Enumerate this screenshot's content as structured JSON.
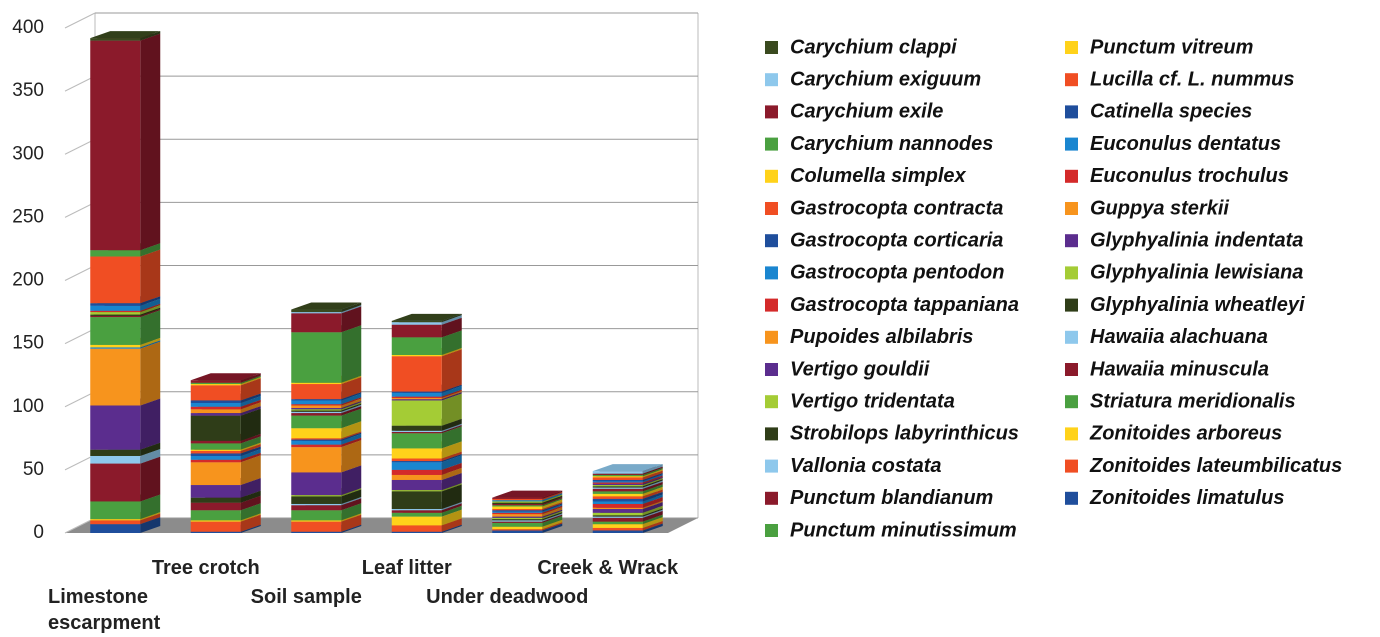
{
  "chart_data": {
    "type": "bar3d_stacked",
    "categories": [
      "Limestone escarpment",
      "Tree crotch",
      "Soil sample",
      "Leaf litter",
      "Under deadwood",
      "Creek & Wrack"
    ],
    "ylim": [
      0,
      400
    ],
    "yticks": [
      0,
      50,
      100,
      150,
      200,
      250,
      300,
      350,
      400
    ],
    "grid": true,
    "series": [
      {
        "name": "Carychium clappi",
        "color": "#3a4a1f",
        "values": [
          2,
          0,
          2,
          1,
          0,
          0
        ]
      },
      {
        "name": "Carychium exiguum",
        "color": "#8ec8ec",
        "values": [
          0,
          0,
          1,
          2,
          0,
          2
        ]
      },
      {
        "name": "Carychium exile",
        "color": "#8b1a2b",
        "values": [
          166,
          2,
          15,
          10,
          1,
          1
        ]
      },
      {
        "name": "Carychium nannodes",
        "color": "#4aa040",
        "values": [
          5,
          1,
          40,
          14,
          0,
          1
        ]
      },
      {
        "name": "Columella simplex",
        "color": "#ffd21a",
        "values": [
          0,
          1,
          1,
          1,
          0,
          1
        ]
      },
      {
        "name": "Gastrocopta contracta",
        "color": "#f04e23",
        "values": [
          37,
          12,
          12,
          28,
          1,
          2
        ]
      },
      {
        "name": "Gastrocopta corticaria",
        "color": "#1f4e9c",
        "values": [
          2,
          2,
          1,
          1,
          0,
          1
        ]
      },
      {
        "name": "Gastrocopta pentodon",
        "color": "#1a86d0",
        "values": [
          4,
          3,
          3,
          3,
          1,
          1
        ]
      },
      {
        "name": "Gastrocopta tappaniana",
        "color": "#d42a2a",
        "values": [
          1,
          2,
          1,
          1,
          0,
          1
        ]
      },
      {
        "name": "Pupoides albilabris",
        "color": "#f7941d",
        "values": [
          0,
          3,
          2,
          1,
          0,
          0
        ]
      },
      {
        "name": "Vertigo gouldii",
        "color": "#5b2d8e",
        "values": [
          0,
          2,
          1,
          1,
          0,
          1
        ]
      },
      {
        "name": "Vertigo tridentata",
        "color": "#a4cc35",
        "values": [
          2,
          0,
          1,
          20,
          1,
          1
        ]
      },
      {
        "name": "Strobilops labyrinthicus",
        "color": "#2f3d18",
        "values": [
          1,
          20,
          1,
          4,
          1,
          1
        ]
      },
      {
        "name": "Vallonia costata",
        "color": "#8ec8ec",
        "values": [
          0,
          0,
          1,
          1,
          0,
          1
        ]
      },
      {
        "name": "Punctum blandianum",
        "color": "#8b1a2b",
        "values": [
          1,
          2,
          2,
          1,
          1,
          2
        ]
      },
      {
        "name": "Punctum minutissimum",
        "color": "#4aa040",
        "values": [
          22,
          5,
          10,
          12,
          1,
          2
        ]
      },
      {
        "name": "Punctum vitreum",
        "color": "#ffd21a",
        "values": [
          2,
          1,
          8,
          8,
          2,
          2
        ]
      },
      {
        "name": "Lucilla cf. L. nummus",
        "color": "#f04e23",
        "values": [
          0,
          2,
          1,
          2,
          1,
          2
        ]
      },
      {
        "name": "Catinella species",
        "color": "#1f4e9c",
        "values": [
          0,
          2,
          1,
          1,
          1,
          2
        ]
      },
      {
        "name": "Euconulus dentatus",
        "color": "#1a86d0",
        "values": [
          1,
          3,
          3,
          6,
          1,
          2
        ]
      },
      {
        "name": "Euconulus trochulus",
        "color": "#d42a2a",
        "values": [
          0,
          2,
          2,
          4,
          1,
          3
        ]
      },
      {
        "name": "Guppya sterkii",
        "color": "#f7941d",
        "values": [
          45,
          18,
          20,
          4,
          2,
          1
        ]
      },
      {
        "name": "Glyphyalinia indentata",
        "color": "#5b2d8e",
        "values": [
          35,
          10,
          18,
          8,
          1,
          3
        ]
      },
      {
        "name": "Glyphyalinia lewisiana",
        "color": "#a4cc35",
        "values": [
          0,
          0,
          1,
          1,
          1,
          2
        ]
      },
      {
        "name": "Glyphyalinia wheatleyi",
        "color": "#2f3d18",
        "values": [
          5,
          4,
          6,
          14,
          1,
          1
        ]
      },
      {
        "name": "Hawaiia alachuana",
        "color": "#8ec8ec",
        "values": [
          6,
          0,
          1,
          1,
          1,
          1
        ]
      },
      {
        "name": "Hawaiia minuscula",
        "color": "#8b1a2b",
        "values": [
          30,
          6,
          4,
          2,
          1,
          3
        ]
      },
      {
        "name": "Striatura meridionalis",
        "color": "#4aa040",
        "values": [
          14,
          8,
          8,
          3,
          3,
          2
        ]
      },
      {
        "name": "Zonitoides arboreus",
        "color": "#ffd21a",
        "values": [
          1,
          1,
          1,
          7,
          2,
          3
        ]
      },
      {
        "name": "Zonitoides lateumbilicatus",
        "color": "#f04e23",
        "values": [
          3,
          8,
          8,
          5,
          1,
          2
        ]
      },
      {
        "name": "Zonitoides limatulus",
        "color": "#1f4e9c",
        "values": [
          7,
          1,
          1,
          1,
          2,
          2
        ]
      }
    ]
  }
}
